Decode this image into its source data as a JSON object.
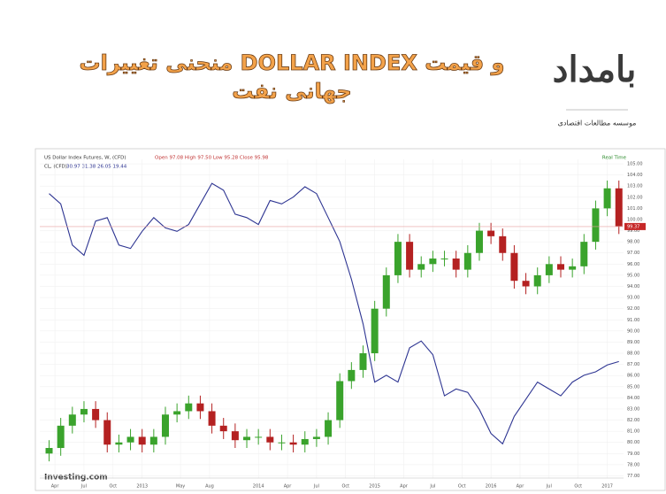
{
  "header": {
    "title_line1": "منحنی تغییرات DOLLAR INDEX و قیمت",
    "title_line2": "جهانی نفت",
    "logo": "بامداد",
    "logo_caption": "موسسه مطالعات اقتصادی"
  },
  "chart_data": {
    "type": "candlestick",
    "legend_dollar": "US Dollar Index Futures, W, (CFD)",
    "legend_dollar_values": "Open 97.08 High 97.50 Low 95.28 Close 95.98",
    "legend_oil_values": "30.97 31.38 26.05 19.44",
    "realtime": "Real Time",
    "source": "Investing.com",
    "x": [
      2012.2,
      2012.3,
      2012.4,
      2012.5,
      2012.6,
      2012.7,
      2012.8,
      2012.9,
      2013.0,
      2013.1,
      2013.2,
      2013.3,
      2013.4,
      2013.5,
      2013.6,
      2013.7,
      2013.8,
      2013.9,
      2014.0,
      2014.1,
      2014.2,
      2014.3,
      2014.4,
      2014.5,
      2014.6,
      2014.7,
      2014.8,
      2014.9,
      2015.0,
      2015.1,
      2015.2,
      2015.3,
      2015.4,
      2015.5,
      2015.6,
      2015.7,
      2015.8,
      2015.9,
      2016.0,
      2016.1,
      2016.2,
      2016.3,
      2016.4,
      2016.5,
      2016.6,
      2016.7,
      2016.8,
      2016.9,
      2017.0,
      2017.1
    ],
    "series": [
      {
        "name": "US Dollar Index Futures",
        "up_color": "#3aa32c",
        "down_color": "#b42121",
        "open": [
          79.0,
          79.5,
          81.5,
          82.5,
          83.0,
          82.0,
          79.8,
          80.0,
          80.5,
          79.8,
          80.5,
          82.5,
          82.8,
          83.5,
          82.8,
          81.5,
          81.0,
          80.2,
          80.5,
          80.5,
          80.0,
          80.0,
          79.8,
          80.3,
          80.5,
          82.0,
          85.5,
          86.5,
          88.0,
          92.0,
          95.0,
          98.0,
          95.5,
          96.0,
          96.5,
          96.5,
          95.5,
          97.0,
          99.0,
          98.5,
          97.0,
          94.5,
          94.0,
          95.0,
          96.0,
          95.5,
          95.8,
          98.0,
          101.0,
          102.8
        ],
        "high": [
          80.2,
          82.2,
          83.2,
          83.7,
          83.7,
          82.7,
          80.7,
          81.2,
          81.2,
          81.2,
          83.2,
          83.5,
          84.2,
          84.2,
          83.5,
          82.2,
          81.7,
          81.2,
          81.2,
          81.2,
          80.7,
          80.7,
          81.0,
          81.2,
          82.7,
          86.2,
          87.2,
          88.7,
          92.7,
          95.7,
          98.7,
          98.7,
          96.7,
          97.2,
          97.2,
          97.2,
          97.7,
          99.7,
          99.7,
          99.2,
          97.7,
          95.2,
          95.7,
          96.7,
          96.7,
          96.5,
          98.7,
          101.7,
          103.5,
          103.5
        ],
        "low": [
          78.3,
          78.8,
          80.8,
          81.8,
          81.3,
          79.1,
          79.1,
          79.3,
          79.1,
          79.1,
          79.8,
          81.8,
          82.1,
          82.1,
          80.8,
          80.3,
          79.5,
          79.5,
          79.8,
          79.3,
          79.3,
          79.1,
          79.1,
          79.6,
          79.8,
          81.3,
          84.8,
          85.8,
          87.3,
          91.3,
          94.3,
          94.8,
          94.8,
          95.3,
          95.8,
          94.8,
          94.8,
          96.3,
          97.8,
          96.3,
          93.8,
          93.3,
          93.3,
          94.3,
          94.8,
          94.8,
          95.1,
          97.3,
          100.3,
          98.7
        ],
        "close": [
          79.5,
          81.5,
          82.5,
          83.0,
          82.0,
          79.8,
          80.0,
          80.5,
          79.8,
          80.5,
          82.5,
          82.8,
          83.5,
          82.8,
          81.5,
          81.0,
          80.2,
          80.5,
          80.5,
          80.0,
          80.0,
          79.8,
          80.3,
          80.5,
          82.0,
          85.5,
          86.5,
          88.0,
          92.0,
          95.0,
          98.0,
          95.5,
          96.0,
          96.5,
          96.5,
          95.5,
          97.0,
          99.0,
          98.5,
          97.0,
          94.5,
          94.0,
          95.0,
          96.0,
          95.5,
          95.8,
          98.0,
          101.0,
          102.8,
          99.4
        ]
      },
      {
        "name": "CL, (CFD)",
        "color": "#2e3592",
        "axis": "y2",
        "values": [
          103,
          100,
          88,
          85,
          95,
          96,
          88,
          87,
          92,
          96,
          93,
          92,
          94,
          100,
          106,
          104,
          97,
          96,
          94,
          101,
          100,
          102,
          105,
          103,
          96,
          89,
          78,
          65,
          48,
          50,
          48,
          58,
          60,
          56,
          44,
          46,
          45,
          40,
          33,
          30,
          38,
          43,
          48,
          46,
          44,
          48,
          50,
          51,
          53,
          54
        ]
      }
    ],
    "last_price": {
      "value": 99.37,
      "label": "99.37"
    },
    "xlim": [
      2012.12,
      2017.14
    ],
    "xticks": [
      {
        "value": 2012.25,
        "label": "Apr"
      },
      {
        "value": 2012.5,
        "label": "Jul"
      },
      {
        "value": 2012.75,
        "label": "Oct"
      },
      2013,
      {
        "value": 2013.33,
        "label": "May"
      },
      {
        "value": 2013.58,
        "label": "Aug"
      },
      2014,
      {
        "value": 2014.25,
        "label": "Apr"
      },
      {
        "value": 2014.5,
        "label": "Jul"
      },
      {
        "value": 2014.75,
        "label": "Oct"
      },
      2015,
      {
        "value": 2015.25,
        "label": "Apr"
      },
      {
        "value": 2015.5,
        "label": "Jul"
      },
      {
        "value": 2015.75,
        "label": "Oct"
      },
      2016,
      {
        "value": 2016.25,
        "label": "Apr"
      },
      {
        "value": 2016.5,
        "label": "Jul"
      },
      {
        "value": 2016.75,
        "label": "Oct"
      },
      2017
    ],
    "ylim": [
      76.8,
      105.4
    ],
    "y2lim": [
      20,
      113
    ],
    "yticks": [
      {
        "value": 105,
        "label": "105.00"
      },
      {
        "value": 104,
        "label": "104.00"
      },
      {
        "value": 103,
        "label": "103.00"
      },
      {
        "value": 102,
        "label": "102.00"
      },
      {
        "value": 101,
        "label": "101.00"
      },
      {
        "value": 100,
        "label": "100.00"
      },
      {
        "value": 99,
        "label": "99.00"
      },
      {
        "value": 98,
        "label": "98.00"
      },
      {
        "value": 97,
        "label": "97.00"
      },
      {
        "value": 96,
        "label": "96.00"
      },
      {
        "value": 95,
        "label": "95.00"
      },
      {
        "value": 94,
        "label": "94.00"
      },
      {
        "value": 93,
        "label": "93.00"
      },
      {
        "value": 92,
        "label": "92.00"
      },
      {
        "value": 91,
        "label": "91.00"
      },
      {
        "value": 90,
        "label": "90.00"
      },
      {
        "value": 89,
        "label": "89.00"
      },
      {
        "value": 88,
        "label": "88.00"
      },
      {
        "value": 87,
        "label": "87.00"
      },
      {
        "value": 86,
        "label": "86.00"
      },
      {
        "value": 85,
        "label": "85.00"
      },
      {
        "value": 84,
        "label": "84.00"
      },
      {
        "value": 83,
        "label": "83.00"
      },
      {
        "value": 82,
        "label": "82.00"
      },
      {
        "value": 81,
        "label": "81.00"
      },
      {
        "value": 80,
        "label": "80.00"
      },
      {
        "value": 79,
        "label": "79.00"
      },
      {
        "value": 78,
        "label": "78.00"
      },
      {
        "value": 77,
        "label": "77.00"
      }
    ],
    "grid": true
  }
}
